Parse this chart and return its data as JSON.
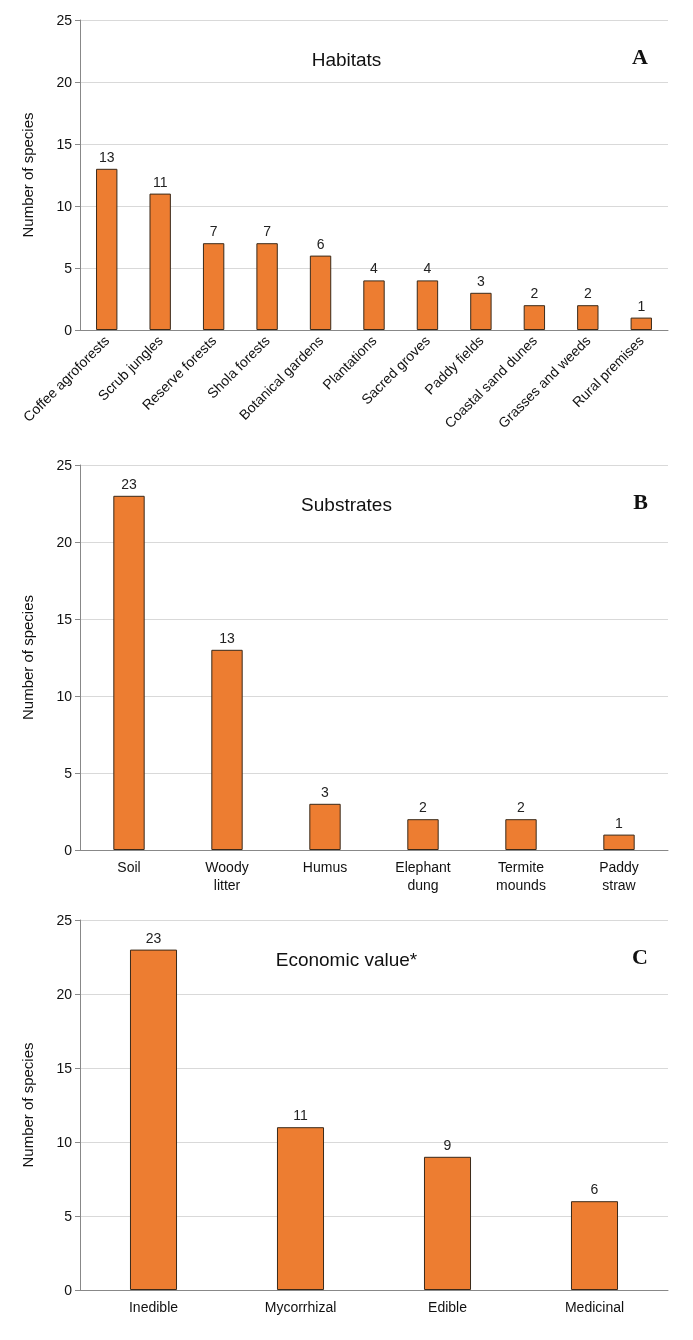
{
  "chart_data": [
    {
      "type": "bar",
      "title": "Habitats",
      "ylabel": "Number of species",
      "annotations": [
        "A"
      ],
      "categories": [
        "Coffee agroforests",
        "Scrub jungles",
        "Reserve forests",
        "Shola forests",
        "Botanical gardens",
        "Plantations",
        "Sacred groves",
        "Paddy fields",
        "Coastal sand dunes",
        "Grasses and weeds",
        "Rural premises"
      ],
      "values": [
        13,
        11,
        7,
        7,
        6,
        4,
        4,
        3,
        2,
        2,
        1
      ],
      "color": "#ed7d31",
      "ylim": [
        0,
        25
      ],
      "yticks": [
        0,
        5,
        10,
        15,
        20,
        25
      ],
      "grid": "y",
      "data_labels": true
    },
    {
      "type": "bar",
      "title": "Substrates",
      "ylabel": "Number of species",
      "annotations": [
        "B"
      ],
      "categories": [
        "Soil",
        "Woody\nlitter",
        "Humus",
        "Elephant\ndung",
        "Termite\nmounds",
        "Paddy\nstraw"
      ],
      "values": [
        23,
        13,
        3,
        2,
        2,
        1
      ],
      "color": "#ed7d31",
      "ylim": [
        0,
        25
      ],
      "yticks": [
        0,
        5,
        10,
        15,
        20,
        25
      ],
      "grid": "y",
      "data_labels": true
    },
    {
      "type": "bar",
      "title": "Economic value*",
      "ylabel": "Number of species",
      "annotations": [
        "C"
      ],
      "categories": [
        "Inedible",
        "Mycorrhizal",
        "Edible",
        "Medicinal"
      ],
      "values": [
        23,
        11,
        9,
        6
      ],
      "color": "#ed7d31",
      "ylim": [
        0,
        25
      ],
      "yticks": [
        0,
        5,
        10,
        15,
        20,
        25
      ],
      "grid": "y",
      "data_labels": true
    }
  ]
}
